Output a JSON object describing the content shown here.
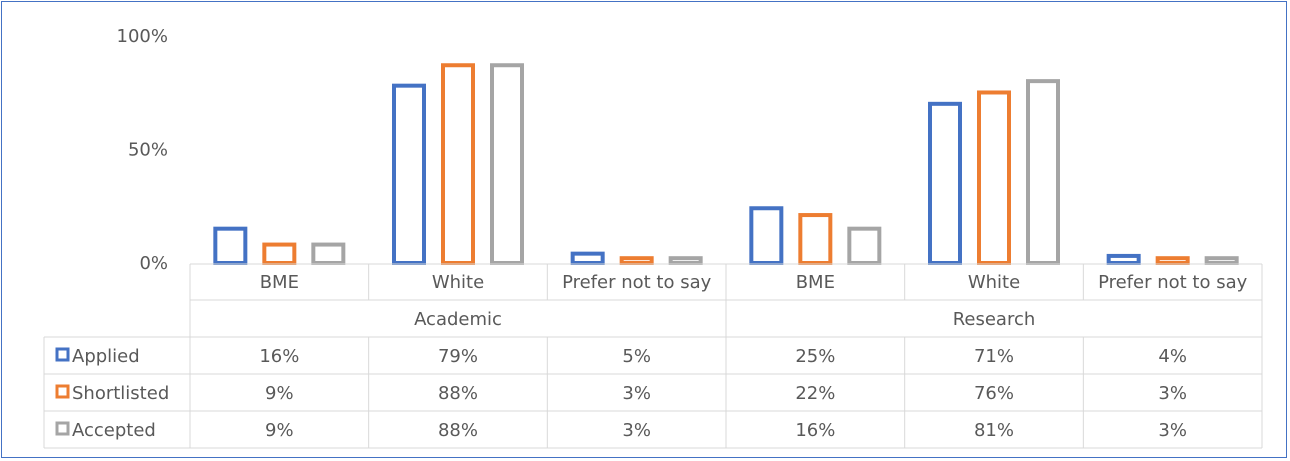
{
  "chart_data": {
    "type": "bar",
    "title": "",
    "xlabel": "",
    "ylabel": "",
    "ylim": [
      0,
      100
    ],
    "y_ticks": [
      "0%",
      "50%",
      "100%"
    ],
    "groups": [
      {
        "name": "Academic",
        "categories": [
          "BME",
          "White",
          "Prefer not to say"
        ]
      },
      {
        "name": "Research",
        "categories": [
          "BME",
          "White",
          "Prefer not to say"
        ]
      }
    ],
    "series": [
      {
        "name": "Applied",
        "color": "#4472C4",
        "values": [
          16,
          79,
          5,
          25,
          71,
          4
        ],
        "labels": [
          "16%",
          "79%",
          "5%",
          "25%",
          "71%",
          "4%"
        ]
      },
      {
        "name": "Shortlisted",
        "color": "#ED7D31",
        "values": [
          9,
          88,
          3,
          22,
          76,
          3
        ],
        "labels": [
          "9%",
          "88%",
          "3%",
          "22%",
          "76%",
          "3%"
        ]
      },
      {
        "name": "Accepted",
        "color": "#A5A5A5",
        "values": [
          9,
          88,
          3,
          16,
          81,
          3
        ],
        "labels": [
          "9%",
          "88%",
          "3%",
          "16%",
          "81%",
          "3%"
        ]
      }
    ],
    "legend": "data-table-left",
    "grid": false,
    "bar_style": "outline"
  },
  "colors": {
    "frame": "#4472C4",
    "table_lines": "#D9D9D9",
    "text": "#595959"
  }
}
